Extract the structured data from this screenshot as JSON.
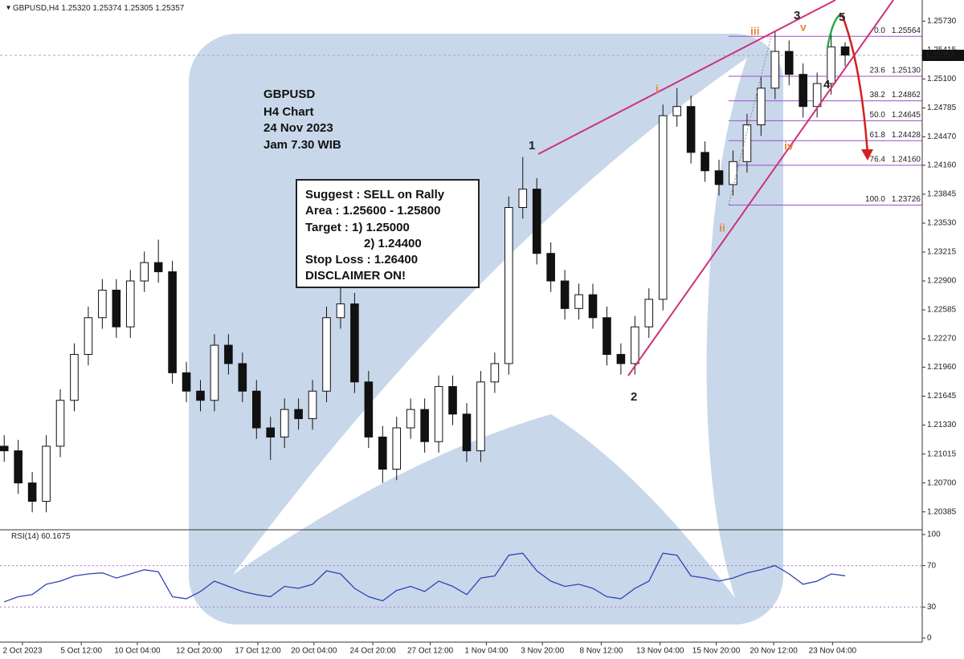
{
  "chart_data": {
    "type": "candlestick",
    "symbol": "GBPUSD,H4",
    "quote": [
      {
        "value": 1.2532,
        "label": "1.25320"
      },
      {
        "value": 1.25374,
        "label": "1.25374"
      },
      {
        "value": 1.25305,
        "label": "1.25305"
      },
      {
        "value": 1.25357,
        "label": "1.25357"
      }
    ],
    "last_price": {
      "value": 1.25357,
      "label": "1.25357"
    },
    "open": [
      1.211,
      1.2105,
      1.207,
      1.205,
      1.211,
      1.216,
      1.221,
      1.225,
      1.228,
      1.224,
      1.229,
      1.231,
      1.23,
      1.219,
      1.217,
      1.216,
      1.222,
      1.22,
      1.217,
      1.213,
      1.212,
      1.215,
      1.214,
      1.217,
      1.225,
      1.2265,
      1.218,
      1.212,
      1.2085,
      1.213,
      1.215,
      1.2115,
      1.2175,
      1.2145,
      1.2105,
      1.218,
      1.22,
      1.237,
      1.239,
      1.232,
      1.229,
      1.226,
      1.2275,
      1.225,
      1.221,
      1.22,
      1.224,
      1.227,
      1.247,
      1.248,
      1.243,
      1.241,
      1.2395,
      1.242,
      1.246,
      1.25,
      1.254,
      1.2515,
      1.248,
      1.2505,
      1.2545
    ],
    "high": [
      1.2122,
      1.2117,
      1.2082,
      1.2122,
      1.2172,
      1.2222,
      1.2262,
      1.2292,
      1.2292,
      1.2302,
      1.2322,
      1.2335,
      1.2312,
      1.2202,
      1.2182,
      1.2232,
      1.2232,
      1.2212,
      1.2182,
      1.2142,
      1.2162,
      1.2162,
      1.2182,
      1.2262,
      1.2285,
      1.2277,
      1.2192,
      1.2132,
      1.2142,
      1.2162,
      1.2162,
      1.2187,
      1.2187,
      1.2157,
      1.2192,
      1.2212,
      1.2382,
      1.2425,
      1.2402,
      1.2332,
      1.2302,
      1.2287,
      1.2287,
      1.2262,
      1.2222,
      1.2252,
      1.2282,
      1.2482,
      1.25,
      1.2492,
      1.2442,
      1.2422,
      1.2432,
      1.2472,
      1.2512,
      1.2562,
      1.2552,
      1.2527,
      1.2517,
      1.256,
      1.255
    ],
    "low": [
      1.2093,
      1.2058,
      1.2038,
      1.2038,
      1.2098,
      1.2148,
      1.2198,
      1.2238,
      1.2228,
      1.2228,
      1.2278,
      1.2288,
      1.2178,
      1.2158,
      1.2148,
      1.2148,
      1.2188,
      1.2158,
      1.2118,
      1.2095,
      1.2108,
      1.2128,
      1.2128,
      1.2158,
      1.2238,
      1.2168,
      1.2108,
      1.207,
      1.2073,
      1.2118,
      1.2103,
      1.2103,
      1.2133,
      1.2093,
      1.2093,
      1.2168,
      1.2188,
      1.2358,
      1.2308,
      1.2278,
      1.2248,
      1.2248,
      1.2238,
      1.2198,
      1.2188,
      1.2188,
      1.2228,
      1.2258,
      1.2458,
      1.2418,
      1.2398,
      1.2383,
      1.2383,
      1.2408,
      1.2448,
      1.2488,
      1.2503,
      1.2468,
      1.2468,
      1.2493,
      1.2524
    ],
    "close": [
      1.2105,
      1.207,
      1.205,
      1.211,
      1.216,
      1.221,
      1.225,
      1.228,
      1.224,
      1.229,
      1.231,
      1.23,
      1.219,
      1.217,
      1.216,
      1.222,
      1.22,
      1.217,
      1.213,
      1.212,
      1.215,
      1.214,
      1.217,
      1.225,
      1.2265,
      1.218,
      1.212,
      1.2085,
      1.213,
      1.215,
      1.2115,
      1.2175,
      1.2145,
      1.2105,
      1.218,
      1.22,
      1.237,
      1.239,
      1.232,
      1.229,
      1.226,
      1.2275,
      1.225,
      1.221,
      1.22,
      1.224,
      1.227,
      1.247,
      1.248,
      1.243,
      1.241,
      1.2395,
      1.242,
      1.246,
      1.25,
      1.254,
      1.2515,
      1.248,
      1.2505,
      1.2545,
      1.2536
    ],
    "xlim": [
      -0.3,
      65.5
    ],
    "xticks": [
      {
        "value": 1.3,
        "label": "2 Oct 2023"
      },
      {
        "value": 5.5,
        "label": "5 Oct 12:00"
      },
      {
        "value": 9.5,
        "label": "10 Oct 04:00"
      },
      {
        "value": 13.9,
        "label": "12 Oct 20:00"
      },
      {
        "value": 18.1,
        "label": "17 Oct 12:00"
      },
      {
        "value": 22.1,
        "label": "20 Oct 04:00"
      },
      {
        "value": 26.3,
        "label": "24 Oct 20:00"
      },
      {
        "value": 30.4,
        "label": "27 Oct 12:00"
      },
      {
        "value": 34.4,
        "label": "1 Nov 04:00"
      },
      {
        "value": 38.4,
        "label": "3 Nov 20:00"
      },
      {
        "value": 42.6,
        "label": "8 Nov 12:00"
      },
      {
        "value": 46.8,
        "label": "13 Nov 04:00"
      },
      {
        "value": 50.8,
        "label": "15 Nov 20:00"
      },
      {
        "value": 54.9,
        "label": "20 Nov 12:00"
      },
      {
        "value": 59.1,
        "label": "23 Nov 04:00"
      }
    ],
    "ylim": [
      1.2019,
      1.2596
    ],
    "yticks": [
      {
        "value": 1.2573,
        "label": "1.25730"
      },
      {
        "value": 1.25415,
        "label": "1.25415"
      },
      {
        "value": 1.251,
        "label": "1.25100"
      },
      {
        "value": 1.24785,
        "label": "1.24785"
      },
      {
        "value": 1.2447,
        "label": "1.24470"
      },
      {
        "value": 1.2416,
        "label": "1.24160"
      },
      {
        "value": 1.23845,
        "label": "1.23845"
      },
      {
        "value": 1.2353,
        "label": "1.23530"
      },
      {
        "value": 1.23215,
        "label": "1.23215"
      },
      {
        "value": 1.229,
        "label": "1.22900"
      },
      {
        "value": 1.22585,
        "label": "1.22585"
      },
      {
        "value": 1.2227,
        "label": "1.22270"
      },
      {
        "value": 1.2196,
        "label": "1.21960"
      },
      {
        "value": 1.21645,
        "label": "1.21645"
      },
      {
        "value": 1.2133,
        "label": "1.21330"
      },
      {
        "value": 1.21015,
        "label": "1.21015"
      },
      {
        "value": 1.207,
        "label": "1.20700"
      },
      {
        "value": 1.20385,
        "label": "1.20385"
      }
    ],
    "fib": [
      {
        "name": "0.0",
        "price": {
          "value": 1.25564,
          "label": "1.25564"
        }
      },
      {
        "name": "23.6",
        "price": {
          "value": 1.2513,
          "label": "1.25130"
        }
      },
      {
        "name": "38.2",
        "price": {
          "value": 1.24862,
          "label": "1.24862"
        }
      },
      {
        "name": "50.0",
        "price": {
          "value": 1.24645,
          "label": "1.24645"
        }
      },
      {
        "name": "61.8",
        "price": {
          "value": 1.24428,
          "label": "1.24428"
        }
      },
      {
        "name": "76.4",
        "price": {
          "value": 1.2416,
          "label": "1.24160"
        }
      },
      {
        "name": "100.0",
        "price": {
          "value": 1.23726,
          "label": "1.23726"
        }
      }
    ],
    "fib_color": "#9b4fc9",
    "rsi": {
      "name": "RSI(14)",
      "color": "#3142b5",
      "values": [
        35,
        40,
        42,
        52,
        55,
        60,
        62,
        63,
        58,
        62,
        66,
        64,
        40,
        38,
        45,
        55,
        50,
        45,
        42,
        40,
        50,
        48,
        52,
        65,
        62,
        48,
        40,
        36,
        46,
        50,
        45,
        55,
        50,
        42,
        58,
        60,
        80,
        82,
        65,
        55,
        50,
        52,
        48,
        40,
        38,
        48,
        55,
        82,
        80,
        60,
        58,
        55,
        58,
        63,
        66,
        70,
        62,
        52,
        55,
        62,
        60.1675
      ],
      "ylim": [
        -3.9,
        104.6
      ],
      "yticks": [
        100,
        70,
        30,
        0
      ],
      "levels": [
        70,
        30
      ]
    },
    "analysis": [
      "GBPUSD",
      "H4 Chart",
      "24 Nov 2023",
      "Jam 7.30 WIB"
    ],
    "suggestion": [
      "Suggest : SELL on Rally",
      "Area : 1.25600 - 1.25800",
      "Target : 1) 1.25000",
      "2) 1.24400",
      "Stop Loss : 1.26400",
      "DISCLAIMER ON!"
    ],
    "waves": [
      "1",
      "2",
      "3",
      "4",
      "5",
      "i",
      "ii",
      "iii",
      "iv",
      "v"
    ]
  }
}
